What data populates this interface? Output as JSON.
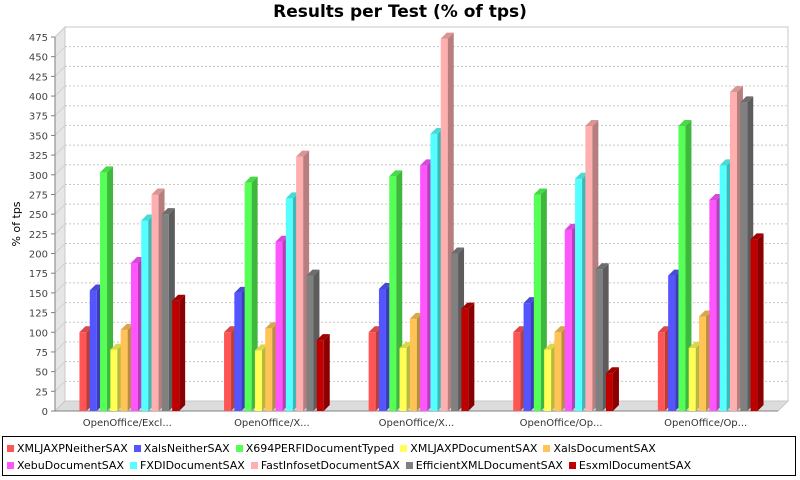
{
  "chart_data": {
    "type": "bar",
    "title": "Results per Test (% of tps)",
    "ylabel": "% of tps",
    "xlabel": "",
    "ylim": [
      0,
      475
    ],
    "yticks": [
      0,
      25,
      50,
      75,
      100,
      125,
      150,
      175,
      200,
      225,
      250,
      275,
      300,
      325,
      350,
      375,
      400,
      425,
      450,
      475
    ],
    "grid": true,
    "style": "3d",
    "legend_position": "bottom",
    "categories": [
      "OpenOffice/Excl...",
      "OpenOffice/X...",
      "OpenOffice/X...",
      "OpenOffice/Op...",
      "OpenOffice/Op..."
    ],
    "series": [
      {
        "name": "XMLJAXPNeitherSAX",
        "color": "#ff5555",
        "values": [
          100,
          100,
          100,
          100,
          100
        ]
      },
      {
        "name": "XalsNeitherSAX",
        "color": "#5555ff",
        "values": [
          153,
          150,
          155,
          137,
          172
        ]
      },
      {
        "name": "X694PERFIDocumentTyped",
        "color": "#55ff55",
        "values": [
          303,
          290,
          298,
          275,
          362
        ]
      },
      {
        "name": "XMLJAXPDocumentSAX",
        "color": "#ffff55",
        "values": [
          78,
          77,
          80,
          78,
          80
        ]
      },
      {
        "name": "XalsDocumentSAX",
        "color": "#ffc455",
        "values": [
          103,
          105,
          117,
          100,
          120
        ]
      },
      {
        "name": "XebuDocumentSAX",
        "color": "#ff55ff",
        "values": [
          188,
          215,
          312,
          230,
          268
        ]
      },
      {
        "name": "FXDIDocumentSAX",
        "color": "#55ffff",
        "values": [
          242,
          270,
          352,
          295,
          312
        ]
      },
      {
        "name": "FastInfosetDocumentSAX",
        "color": "#ffafaf",
        "values": [
          275,
          323,
          473,
          362,
          405
        ]
      },
      {
        "name": "EfficientXMLDocumentSAX",
        "color": "#808080",
        "values": [
          250,
          172,
          200,
          180,
          392
        ]
      },
      {
        "name": "EsxmlDocumentSAX",
        "color": "#c00000",
        "values": [
          140,
          90,
          130,
          48,
          218
        ]
      }
    ]
  }
}
